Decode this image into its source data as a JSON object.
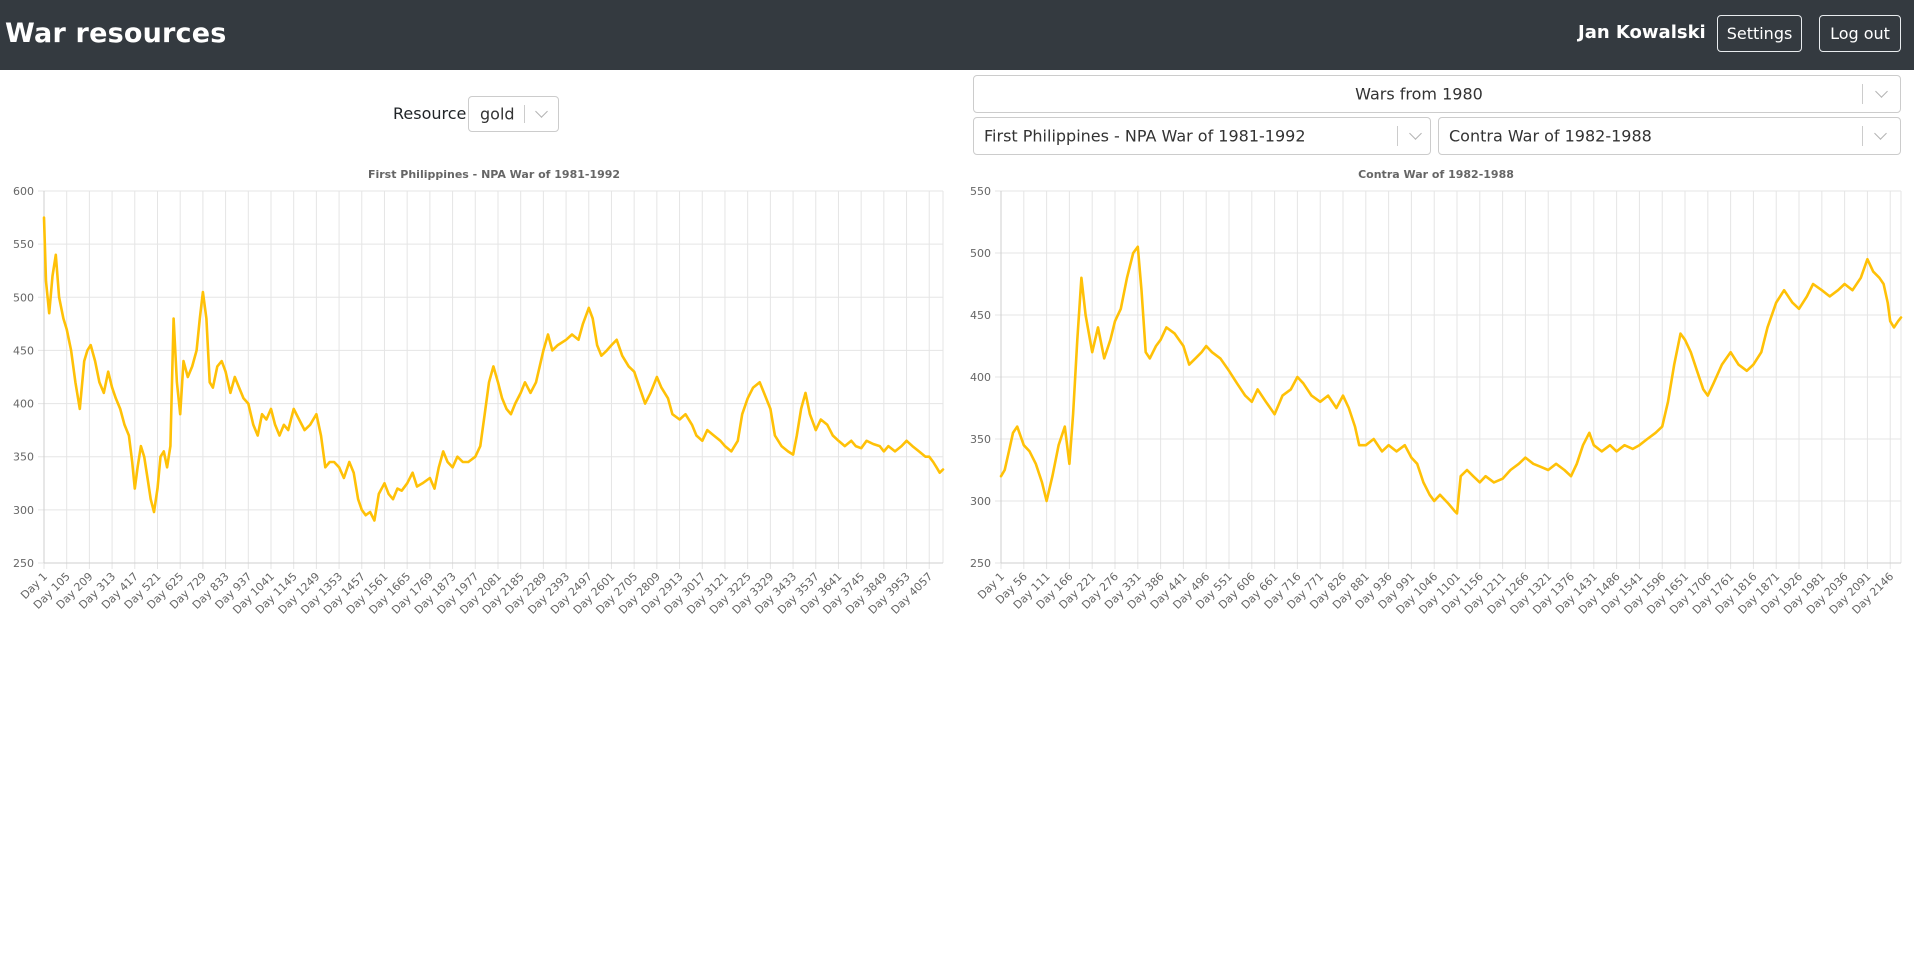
{
  "app": {
    "title": "War resources",
    "user": "Jan Kowalski",
    "settings_label": "Settings",
    "logout_label": "Log out"
  },
  "resource": {
    "label": "Resource:",
    "value": "gold"
  },
  "filters": {
    "period": "Wars from 1980",
    "war_left": "First Philippines - NPA War of 1981-1992",
    "war_right": "Contra War of 1982-1988"
  },
  "colors": {
    "accent": "#FFC107",
    "navbar": "#343a40"
  },
  "chart_data": [
    {
      "type": "line",
      "title": "First Philippines - NPA War of 1981-1992",
      "series_color": "#FFC107",
      "ylim": [
        250,
        600
      ],
      "yticks": [
        250,
        300,
        350,
        400,
        450,
        500,
        550,
        600
      ],
      "grid": true,
      "legend": "none",
      "x_tick_labels": [
        "Day 1",
        "Day 105",
        "Day 209",
        "Day 313",
        "Day 417",
        "Day 521",
        "Day 625",
        "Day 729",
        "Day 833",
        "Day 937",
        "Day 1041",
        "Day 1145",
        "Day 1249",
        "Day 1353",
        "Day 1457",
        "Day 1561",
        "Day 1665",
        "Day 1769",
        "Day 1873",
        "Day 1977",
        "Day 2081",
        "Day 2185",
        "Day 2289",
        "Day 2393",
        "Day 2497",
        "Day 2601",
        "Day 2705",
        "Day 2809",
        "Day 2913",
        "Day 3017",
        "Day 3121",
        "Day 3225",
        "Day 3329",
        "Day 3433",
        "Day 3537",
        "Day 3641",
        "Day 3745",
        "Day 3849",
        "Day 3953",
        "Day 4057"
      ],
      "points": [
        [
          1,
          575
        ],
        [
          10,
          515
        ],
        [
          25,
          485
        ],
        [
          40,
          520
        ],
        [
          55,
          540
        ],
        [
          70,
          500
        ],
        [
          90,
          480
        ],
        [
          105,
          470
        ],
        [
          125,
          450
        ],
        [
          145,
          420
        ],
        [
          165,
          395
        ],
        [
          185,
          440
        ],
        [
          200,
          450
        ],
        [
          215,
          455
        ],
        [
          235,
          440
        ],
        [
          255,
          420
        ],
        [
          275,
          410
        ],
        [
          295,
          430
        ],
        [
          313,
          415
        ],
        [
          330,
          405
        ],
        [
          350,
          395
        ],
        [
          370,
          380
        ],
        [
          390,
          370
        ],
        [
          405,
          345
        ],
        [
          417,
          320
        ],
        [
          430,
          340
        ],
        [
          445,
          360
        ],
        [
          460,
          350
        ],
        [
          475,
          330
        ],
        [
          490,
          310
        ],
        [
          505,
          298
        ],
        [
          521,
          320
        ],
        [
          535,
          350
        ],
        [
          550,
          355
        ],
        [
          565,
          340
        ],
        [
          580,
          360
        ],
        [
          595,
          480
        ],
        [
          610,
          420
        ],
        [
          625,
          390
        ],
        [
          640,
          440
        ],
        [
          660,
          425
        ],
        [
          680,
          435
        ],
        [
          700,
          450
        ],
        [
          715,
          480
        ],
        [
          729,
          505
        ],
        [
          745,
          480
        ],
        [
          760,
          420
        ],
        [
          775,
          415
        ],
        [
          795,
          435
        ],
        [
          815,
          440
        ],
        [
          833,
          430
        ],
        [
          855,
          410
        ],
        [
          875,
          425
        ],
        [
          895,
          415
        ],
        [
          915,
          405
        ],
        [
          937,
          400
        ],
        [
          960,
          380
        ],
        [
          980,
          370
        ],
        [
          1000,
          390
        ],
        [
          1020,
          385
        ],
        [
          1041,
          395
        ],
        [
          1060,
          380
        ],
        [
          1080,
          370
        ],
        [
          1100,
          380
        ],
        [
          1120,
          375
        ],
        [
          1145,
          395
        ],
        [
          1170,
          385
        ],
        [
          1195,
          375
        ],
        [
          1220,
          380
        ],
        [
          1249,
          390
        ],
        [
          1270,
          370
        ],
        [
          1290,
          340
        ],
        [
          1310,
          345
        ],
        [
          1330,
          345
        ],
        [
          1353,
          340
        ],
        [
          1375,
          330
        ],
        [
          1400,
          345
        ],
        [
          1420,
          335
        ],
        [
          1440,
          310
        ],
        [
          1457,
          300
        ],
        [
          1475,
          295
        ],
        [
          1495,
          298
        ],
        [
          1515,
          290
        ],
        [
          1535,
          315
        ],
        [
          1561,
          325
        ],
        [
          1580,
          315
        ],
        [
          1600,
          310
        ],
        [
          1620,
          320
        ],
        [
          1640,
          318
        ],
        [
          1665,
          325
        ],
        [
          1690,
          335
        ],
        [
          1710,
          322
        ],
        [
          1735,
          325
        ],
        [
          1769,
          330
        ],
        [
          1790,
          320
        ],
        [
          1810,
          340
        ],
        [
          1830,
          355
        ],
        [
          1850,
          345
        ],
        [
          1873,
          340
        ],
        [
          1895,
          350
        ],
        [
          1920,
          345
        ],
        [
          1945,
          345
        ],
        [
          1977,
          350
        ],
        [
          2000,
          360
        ],
        [
          2020,
          390
        ],
        [
          2040,
          420
        ],
        [
          2060,
          435
        ],
        [
          2081,
          420
        ],
        [
          2100,
          405
        ],
        [
          2120,
          395
        ],
        [
          2140,
          390
        ],
        [
          2160,
          400
        ],
        [
          2185,
          410
        ],
        [
          2205,
          420
        ],
        [
          2230,
          410
        ],
        [
          2255,
          420
        ],
        [
          2289,
          450
        ],
        [
          2310,
          465
        ],
        [
          2330,
          450
        ],
        [
          2355,
          455
        ],
        [
          2393,
          460
        ],
        [
          2420,
          465
        ],
        [
          2450,
          460
        ],
        [
          2470,
          475
        ],
        [
          2497,
          490
        ],
        [
          2515,
          480
        ],
        [
          2535,
          455
        ],
        [
          2555,
          445
        ],
        [
          2580,
          450
        ],
        [
          2601,
          455
        ],
        [
          2625,
          460
        ],
        [
          2650,
          445
        ],
        [
          2680,
          435
        ],
        [
          2705,
          430
        ],
        [
          2730,
          415
        ],
        [
          2755,
          400
        ],
        [
          2780,
          410
        ],
        [
          2809,
          425
        ],
        [
          2830,
          415
        ],
        [
          2860,
          405
        ],
        [
          2880,
          390
        ],
        [
          2913,
          385
        ],
        [
          2940,
          390
        ],
        [
          2970,
          380
        ],
        [
          2990,
          370
        ],
        [
          3017,
          365
        ],
        [
          3040,
          375
        ],
        [
          3070,
          370
        ],
        [
          3100,
          365
        ],
        [
          3121,
          360
        ],
        [
          3150,
          355
        ],
        [
          3180,
          365
        ],
        [
          3200,
          390
        ],
        [
          3225,
          405
        ],
        [
          3250,
          415
        ],
        [
          3280,
          420
        ],
        [
          3300,
          410
        ],
        [
          3329,
          395
        ],
        [
          3350,
          370
        ],
        [
          3380,
          360
        ],
        [
          3410,
          355
        ],
        [
          3433,
          352
        ],
        [
          3450,
          370
        ],
        [
          3470,
          395
        ],
        [
          3490,
          410
        ],
        [
          3510,
          390
        ],
        [
          3537,
          375
        ],
        [
          3560,
          385
        ],
        [
          3590,
          380
        ],
        [
          3615,
          370
        ],
        [
          3641,
          365
        ],
        [
          3670,
          360
        ],
        [
          3700,
          365
        ],
        [
          3720,
          360
        ],
        [
          3745,
          358
        ],
        [
          3770,
          365
        ],
        [
          3800,
          362
        ],
        [
          3830,
          360
        ],
        [
          3849,
          355
        ],
        [
          3870,
          360
        ],
        [
          3900,
          355
        ],
        [
          3930,
          360
        ],
        [
          3953,
          365
        ],
        [
          3980,
          360
        ],
        [
          4010,
          355
        ],
        [
          4040,
          350
        ],
        [
          4057,
          350
        ],
        [
          4075,
          345
        ],
        [
          4090,
          340
        ],
        [
          4105,
          335
        ],
        [
          4120,
          338
        ]
      ]
    },
    {
      "type": "line",
      "title": "Contra War of 1982-1988",
      "series_color": "#FFC107",
      "ylim": [
        250,
        550
      ],
      "yticks": [
        250,
        300,
        350,
        400,
        450,
        500,
        550
      ],
      "grid": true,
      "legend": "none",
      "x_tick_labels": [
        "Day 1",
        "Day 56",
        "Day 111",
        "Day 166",
        "Day 221",
        "Day 276",
        "Day 331",
        "Day 386",
        "Day 441",
        "Day 496",
        "Day 551",
        "Day 606",
        "Day 661",
        "Day 716",
        "Day 771",
        "Day 826",
        "Day 881",
        "Day 936",
        "Day 991",
        "Day 1046",
        "Day 1101",
        "Day 1156",
        "Day 1211",
        "Day 1266",
        "Day 1321",
        "Day 1376",
        "Day 1431",
        "Day 1486",
        "Day 1541",
        "Day 1596",
        "Day 1651",
        "Day 1706",
        "Day 1761",
        "Day 1816",
        "Day 1871",
        "Day 1926",
        "Day 1981",
        "Day 2036",
        "Day 2091",
        "Day 2146"
      ],
      "points": [
        [
          1,
          320
        ],
        [
          10,
          325
        ],
        [
          20,
          340
        ],
        [
          30,
          355
        ],
        [
          40,
          360
        ],
        [
          56,
          345
        ],
        [
          70,
          340
        ],
        [
          85,
          330
        ],
        [
          100,
          315
        ],
        [
          111,
          300
        ],
        [
          125,
          320
        ],
        [
          140,
          345
        ],
        [
          155,
          360
        ],
        [
          166,
          330
        ],
        [
          175,
          370
        ],
        [
          185,
          430
        ],
        [
          195,
          480
        ],
        [
          205,
          450
        ],
        [
          221,
          420
        ],
        [
          235,
          440
        ],
        [
          250,
          415
        ],
        [
          265,
          430
        ],
        [
          276,
          445
        ],
        [
          290,
          455
        ],
        [
          305,
          480
        ],
        [
          320,
          500
        ],
        [
          331,
          505
        ],
        [
          340,
          470
        ],
        [
          350,
          420
        ],
        [
          360,
          415
        ],
        [
          375,
          425
        ],
        [
          386,
          430
        ],
        [
          400,
          440
        ],
        [
          420,
          435
        ],
        [
          441,
          425
        ],
        [
          455,
          410
        ],
        [
          470,
          415
        ],
        [
          485,
          420
        ],
        [
          496,
          425
        ],
        [
          510,
          420
        ],
        [
          530,
          415
        ],
        [
          551,
          405
        ],
        [
          570,
          395
        ],
        [
          590,
          385
        ],
        [
          606,
          380
        ],
        [
          620,
          390
        ],
        [
          640,
          380
        ],
        [
          661,
          370
        ],
        [
          680,
          385
        ],
        [
          700,
          390
        ],
        [
          716,
          400
        ],
        [
          730,
          395
        ],
        [
          750,
          385
        ],
        [
          771,
          380
        ],
        [
          790,
          385
        ],
        [
          810,
          375
        ],
        [
          826,
          385
        ],
        [
          840,
          375
        ],
        [
          855,
          360
        ],
        [
          865,
          345
        ],
        [
          881,
          345
        ],
        [
          900,
          350
        ],
        [
          920,
          340
        ],
        [
          936,
          345
        ],
        [
          955,
          340
        ],
        [
          975,
          345
        ],
        [
          991,
          335
        ],
        [
          1005,
          330
        ],
        [
          1020,
          315
        ],
        [
          1035,
          305
        ],
        [
          1046,
          300
        ],
        [
          1060,
          305
        ],
        [
          1080,
          298
        ],
        [
          1095,
          292
        ],
        [
          1101,
          290
        ],
        [
          1110,
          320
        ],
        [
          1125,
          325
        ],
        [
          1140,
          320
        ],
        [
          1156,
          315
        ],
        [
          1170,
          320
        ],
        [
          1190,
          315
        ],
        [
          1211,
          318
        ],
        [
          1230,
          325
        ],
        [
          1250,
          330
        ],
        [
          1266,
          335
        ],
        [
          1285,
          330
        ],
        [
          1300,
          328
        ],
        [
          1321,
          325
        ],
        [
          1340,
          330
        ],
        [
          1360,
          325
        ],
        [
          1376,
          320
        ],
        [
          1390,
          330
        ],
        [
          1405,
          345
        ],
        [
          1420,
          355
        ],
        [
          1431,
          345
        ],
        [
          1450,
          340
        ],
        [
          1470,
          345
        ],
        [
          1486,
          340
        ],
        [
          1505,
          345
        ],
        [
          1525,
          342
        ],
        [
          1541,
          345
        ],
        [
          1560,
          350
        ],
        [
          1580,
          355
        ],
        [
          1596,
          360
        ],
        [
          1610,
          380
        ],
        [
          1625,
          410
        ],
        [
          1640,
          435
        ],
        [
          1651,
          430
        ],
        [
          1665,
          420
        ],
        [
          1680,
          405
        ],
        [
          1695,
          390
        ],
        [
          1706,
          385
        ],
        [
          1720,
          395
        ],
        [
          1740,
          410
        ],
        [
          1761,
          420
        ],
        [
          1780,
          410
        ],
        [
          1800,
          405
        ],
        [
          1816,
          410
        ],
        [
          1835,
          420
        ],
        [
          1850,
          440
        ],
        [
          1871,
          460
        ],
        [
          1890,
          470
        ],
        [
          1910,
          460
        ],
        [
          1926,
          455
        ],
        [
          1945,
          465
        ],
        [
          1960,
          475
        ],
        [
          1981,
          470
        ],
        [
          2000,
          465
        ],
        [
          2020,
          470
        ],
        [
          2036,
          475
        ],
        [
          2055,
          470
        ],
        [
          2075,
          480
        ],
        [
          2091,
          495
        ],
        [
          2105,
          485
        ],
        [
          2120,
          480
        ],
        [
          2130,
          475
        ],
        [
          2140,
          460
        ],
        [
          2146,
          445
        ],
        [
          2155,
          440
        ],
        [
          2165,
          445
        ],
        [
          2172,
          448
        ]
      ]
    }
  ]
}
